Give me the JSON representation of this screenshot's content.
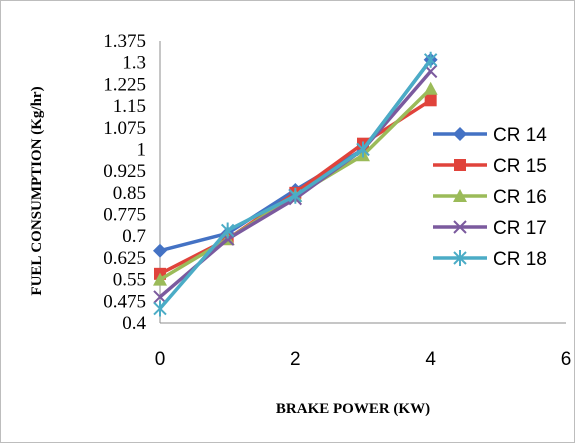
{
  "chart_data": {
    "type": "line",
    "title": "",
    "xlabel": "BRAKE POWER (KW)",
    "ylabel": "FUEL CONSUMPTION (Kg/hr)",
    "xlim": [
      0,
      6
    ],
    "ylim": [
      0.4,
      1.375
    ],
    "x_ticks": [
      "0",
      "2",
      "4",
      "6"
    ],
    "y_ticks": [
      "0.4",
      "0.475",
      "0.55",
      "0.625",
      "0.7",
      "0.775",
      "0.85",
      "0.925",
      "1",
      "1.075",
      "1.15",
      "1.225",
      "1.3",
      "1.375"
    ],
    "grid": false,
    "legend_position": "right",
    "x": [
      0,
      1,
      2,
      3,
      4
    ],
    "series": [
      {
        "name": "CR 14",
        "color": "#4472C4",
        "marker": "diamond",
        "values": [
          0.65,
          0.71,
          0.86,
          1.0,
          1.31
        ]
      },
      {
        "name": "CR 15",
        "color": "#E0433B",
        "marker": "square",
        "values": [
          0.57,
          0.69,
          0.85,
          1.02,
          1.17
        ]
      },
      {
        "name": "CR 16",
        "color": "#9BBB59",
        "marker": "triangle",
        "values": [
          0.55,
          0.69,
          0.84,
          0.98,
          1.21
        ]
      },
      {
        "name": "CR 17",
        "color": "#7B5A9E",
        "marker": "x",
        "values": [
          0.49,
          0.69,
          0.83,
          1.0,
          1.27
        ]
      },
      {
        "name": "CR 18",
        "color": "#4BACC6",
        "marker": "star",
        "values": [
          0.45,
          0.72,
          0.84,
          1.0,
          1.31
        ]
      }
    ]
  }
}
